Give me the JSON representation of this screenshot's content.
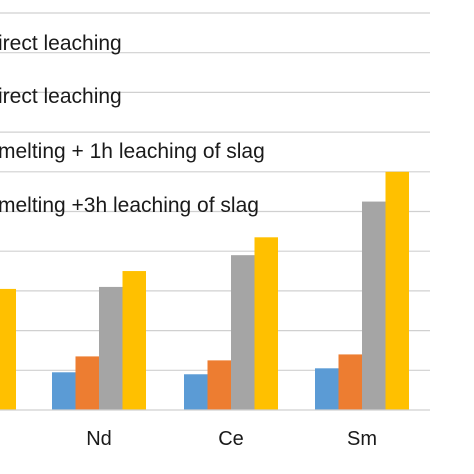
{
  "chart_data": {
    "type": "bar",
    "categories": [
      "Nd",
      "Ce",
      "Sm"
    ],
    "series": [
      {
        "name": "irect leaching",
        "color": "#5b9bd5",
        "values": [
          9.5,
          9.0,
          10.5
        ]
      },
      {
        "name": "irect leaching",
        "color": "#ed7d31",
        "values": [
          13.5,
          12.5,
          14.0
        ]
      },
      {
        "name": "melting + 1h leaching  of slag",
        "color": "#a5a5a5",
        "values": [
          31.0,
          39.0,
          52.5
        ]
      },
      {
        "name": "melting +3h leaching of slag",
        "color": "#ffc000",
        "values": [
          35.0,
          43.5,
          60.0
        ]
      }
    ],
    "partial_left_bar": {
      "color": "#ffc000",
      "value": 30.5
    },
    "ylim": [
      0,
      100
    ],
    "grid": true,
    "legend_position": "top-left"
  }
}
